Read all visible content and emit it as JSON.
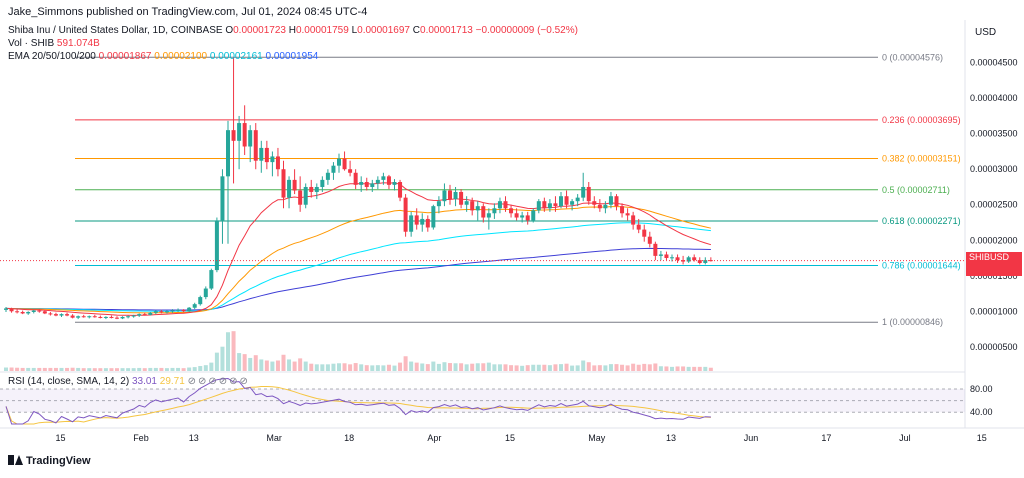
{
  "header": {
    "published": "Jake_Simmons published on TradingView.com, Jul 01, 2024 08:45 UTC-4",
    "symbol": "Shiba Inu / United States Dollar, 1D, COINBASE",
    "open_label": "O",
    "open": "0.00001723",
    "high_label": "H",
    "high": "0.00001759",
    "low_label": "L",
    "low": "0.00001697",
    "close_label": "C",
    "close": "0.00001713",
    "change": "−0.00000009 (−0.52%)",
    "vol_label": "Vol · SHIB",
    "vol": "591.074B",
    "ema_label": "EMA 20/50/100/200",
    "ema20": "0.00001867",
    "ema50": "0.00002100",
    "ema100": "0.00002161",
    "ema200": "0.00001954"
  },
  "currency": "USD",
  "price_tag": {
    "ticker": "SHIBUSD",
    "price": "0.00001713",
    "countdown": "11:14:31"
  },
  "rsi": {
    "label": "RSI (14, close, SMA, 14, 2)",
    "value": "33.01",
    "sma": "29.71",
    "levels": [
      "80.00",
      "40.00"
    ]
  },
  "logo_text": "TradingView",
  "colors": {
    "up": "#26a69a",
    "down": "#f23645",
    "ema20": "#f23645",
    "ema50": "#ff9800",
    "ema100": "#00e5ff",
    "ema200": "#3f3fd6",
    "rsi": "#7e57c2",
    "rsi_sma": "#f5c542"
  },
  "chart_data": {
    "type": "candlestick",
    "y_axis": {
      "ticks": [
        "0.00004500",
        "0.00004000",
        "0.00003500",
        "0.00003000",
        "0.00002500",
        "0.00002000",
        "0.00001500",
        "0.00001000",
        "0.00000500"
      ],
      "range": [
        5e-07,
        4.58e-05
      ]
    },
    "x_axis": {
      "ticks": [
        "15",
        "Feb",
        "13",
        "Mar",
        "18",
        "Apr",
        "15",
        "May",
        "13",
        "Jun",
        "17",
        "Jul",
        "15"
      ]
    },
    "fib_levels": [
      {
        "label": "0 (0.00004576)",
        "value": 4.576e-05,
        "color": "#787b86"
      },
      {
        "label": "0.236 (0.00003695)",
        "value": 3.695e-05,
        "color": "#f23645"
      },
      {
        "label": "0.382 (0.00003151)",
        "value": 3.151e-05,
        "color": "#ff9800"
      },
      {
        "label": "0.5 (0.00002711)",
        "value": 2.711e-05,
        "color": "#4caf50"
      },
      {
        "label": "0.618 (0.00002271)",
        "value": 2.271e-05,
        "color": "#089981"
      },
      {
        "label": "0.786 (0.00001644)",
        "value": 1.644e-05,
        "color": "#00bcd4"
      },
      {
        "label": "1 (0.00000846)",
        "value": 8.46e-06,
        "color": "#787b86"
      }
    ],
    "candles": [
      [
        1.02e-05,
        1.06e-05,
        9.9e-06,
        1.04e-05
      ],
      [
        1.04e-05,
        1.05e-05,
        9.8e-06,
        1e-05
      ],
      [
        1e-05,
        1.03e-05,
        9.7e-06,
        9.9e-06
      ],
      [
        9.9e-06,
        1.01e-05,
        9.6e-06,
        9.7e-06
      ],
      [
        9.7e-06,
        1e-05,
        9.5e-06,
        9.9e-06
      ],
      [
        9.9e-06,
        1.02e-05,
        9.7e-06,
        1.01e-05
      ],
      [
        1.01e-05,
        1.03e-05,
        9.8e-06,
        1e-05
      ],
      [
        1e-05,
        1.01e-05,
        9.6e-06,
        9.7e-06
      ],
      [
        9.7e-06,
        9.9e-06,
        9.4e-06,
        9.6e-06
      ],
      [
        9.6e-06,
        9.8e-06,
        9.3e-06,
        9.4e-06
      ],
      [
        9.4e-06,
        9.7e-06,
        9.2e-06,
        9.6e-06
      ],
      [
        9.6e-06,
        9.8e-06,
        9.3e-06,
        9.4e-06
      ],
      [
        9.4e-06,
        9.6e-06,
        9e-06,
        9.1e-06
      ],
      [
        9.1e-06,
        9.4e-06,
        8.9e-06,
        9.3e-06
      ],
      [
        9.3e-06,
        9.5e-06,
        9.1e-06,
        9.2e-06
      ],
      [
        9.2e-06,
        9.4e-06,
        9e-06,
        9.3e-06
      ],
      [
        9.3e-06,
        9.5e-06,
        9.1e-06,
        9.2e-06
      ],
      [
        9.2e-06,
        9.4e-06,
        9e-06,
        9.1e-06
      ],
      [
        9.1e-06,
        9.3e-06,
        8.9e-06,
        9.2e-06
      ],
      [
        9.2e-06,
        9.4e-06,
        9e-06,
        9.1e-06
      ],
      [
        9.1e-06,
        9.3e-06,
        8.9e-06,
        9e-06
      ],
      [
        9e-06,
        9.3e-06,
        8.9e-06,
        9.2e-06
      ],
      [
        9.2e-06,
        9.4e-06,
        9e-06,
        9.3e-06
      ],
      [
        9.3e-06,
        9.5e-06,
        9.1e-06,
        9.4e-06
      ],
      [
        9.4e-06,
        9.7e-06,
        9.2e-06,
        9.6e-06
      ],
      [
        9.6e-06,
        9.8e-06,
        9.4e-06,
        9.5e-06
      ],
      [
        9.5e-06,
        9.9e-06,
        9.4e-06,
        9.8e-06
      ],
      [
        9.8e-06,
        1.01e-05,
        9.6e-06,
        1e-05
      ],
      [
        1e-05,
        1.02e-05,
        9.7e-06,
        9.9e-06
      ],
      [
        9.9e-06,
        1.01e-05,
        9.7e-06,
        1e-05
      ],
      [
        1e-05,
        1.03e-05,
        9.8e-06,
        1.01e-05
      ],
      [
        1.01e-05,
        1.04e-05,
        9.9e-06,
        1.02e-05
      ],
      [
        1.02e-05,
        1.03e-05,
        9.9e-06,
        1e-05
      ],
      [
        1e-05,
        1.06e-05,
        9.9e-06,
        1.05e-05
      ],
      [
        1.05e-05,
        1.12e-05,
        1.03e-05,
        1.1e-05
      ],
      [
        1.1e-05,
        1.22e-05,
        1.08e-05,
        1.2e-05
      ],
      [
        1.2e-05,
        1.35e-05,
        1.17e-05,
        1.32e-05
      ],
      [
        1.32e-05,
        1.6e-05,
        1.3e-05,
        1.58e-05
      ],
      [
        1.58e-05,
        2.32e-05,
        1.55e-05,
        2.28e-05
      ],
      [
        2.28e-05,
        3e-05,
        1.95e-05,
        2.9e-05
      ],
      [
        2.9e-05,
        3.68e-05,
        1.95e-05,
        3.55e-05
      ],
      [
        3.55e-05,
        4.58e-05,
        2.8e-05,
        3.4e-05
      ],
      [
        3.4e-05,
        3.75e-05,
        3e-05,
        3.65e-05
      ],
      [
        3.65e-05,
        3.9e-05,
        3.2e-05,
        3.32e-05
      ],
      [
        3.32e-05,
        3.62e-05,
        3.1e-05,
        3.55e-05
      ],
      [
        3.55e-05,
        3.65e-05,
        3e-05,
        3.12e-05
      ],
      [
        3.12e-05,
        3.4e-05,
        2.95e-05,
        3.3e-05
      ],
      [
        3.3e-05,
        3.4e-05,
        3e-05,
        3.1e-05
      ],
      [
        3.1e-05,
        3.25e-05,
        2.9e-05,
        3.18e-05
      ],
      [
        3.18e-05,
        3.3e-05,
        2.9e-05,
        3e-05
      ],
      [
        3e-05,
        3.12e-05,
        2.45e-05,
        2.6e-05
      ],
      [
        2.6e-05,
        2.9e-05,
        2.45e-05,
        2.85e-05
      ],
      [
        2.85e-05,
        3e-05,
        2.65e-05,
        2.7e-05
      ],
      [
        2.7e-05,
        2.9e-05,
        2.4e-05,
        2.5e-05
      ],
      [
        2.5e-05,
        2.8e-05,
        2.45e-05,
        2.75e-05
      ],
      [
        2.75e-05,
        2.85e-05,
        2.6e-05,
        2.68e-05
      ],
      [
        2.68e-05,
        2.8e-05,
        2.58e-05,
        2.75e-05
      ],
      [
        2.75e-05,
        2.9e-05,
        2.68e-05,
        2.85e-05
      ],
      [
        2.85e-05,
        3e-05,
        2.78e-05,
        2.95e-05
      ],
      [
        2.95e-05,
        3.1e-05,
        2.85e-05,
        3.05e-05
      ],
      [
        3.05e-05,
        3.22e-05,
        2.95e-05,
        3.15e-05
      ],
      [
        3.15e-05,
        3.25e-05,
        2.98e-05,
        3e-05
      ],
      [
        3e-05,
        3.12e-05,
        2.9e-05,
        2.95e-05
      ],
      [
        2.95e-05,
        3e-05,
        2.72e-05,
        2.78e-05
      ],
      [
        2.78e-05,
        2.9e-05,
        2.68e-05,
        2.82e-05
      ],
      [
        2.82e-05,
        2.88e-05,
        2.7e-05,
        2.75e-05
      ],
      [
        2.75e-05,
        2.85e-05,
        2.68e-05,
        2.8e-05
      ],
      [
        2.8e-05,
        2.9e-05,
        2.72e-05,
        2.85e-05
      ],
      [
        2.85e-05,
        2.95e-05,
        2.78e-05,
        2.9e-05
      ],
      [
        2.9e-05,
        2.92e-05,
        2.72e-05,
        2.78e-05
      ],
      [
        2.78e-05,
        2.86e-05,
        2.7e-05,
        2.82e-05
      ],
      [
        2.82e-05,
        2.85e-05,
        2.55e-05,
        2.6e-05
      ],
      [
        2.6e-05,
        2.65e-05,
        2.05e-05,
        2.12e-05
      ],
      [
        2.12e-05,
        2.4e-05,
        2.05e-05,
        2.35e-05
      ],
      [
        2.35e-05,
        2.45e-05,
        2.15e-05,
        2.22e-05
      ],
      [
        2.22e-05,
        2.38e-05,
        2.12e-05,
        2.3e-05
      ],
      [
        2.3e-05,
        2.35e-05,
        2.12e-05,
        2.18e-05
      ],
      [
        2.18e-05,
        2.5e-05,
        2.15e-05,
        2.48e-05
      ],
      [
        2.48e-05,
        2.62e-05,
        2.38e-05,
        2.55e-05
      ],
      [
        2.55e-05,
        2.8e-05,
        2.48e-05,
        2.7e-05
      ],
      [
        2.7e-05,
        2.78e-05,
        2.5e-05,
        2.58e-05
      ],
      [
        2.58e-05,
        2.75e-05,
        2.48e-05,
        2.68e-05
      ],
      [
        2.68e-05,
        2.72e-05,
        2.45e-05,
        2.5e-05
      ],
      [
        2.5e-05,
        2.62e-05,
        2.4e-05,
        2.55e-05
      ],
      [
        2.55e-05,
        2.6e-05,
        2.35e-05,
        2.42e-05
      ],
      [
        2.42e-05,
        2.55e-05,
        2.28e-05,
        2.48e-05
      ],
      [
        2.48e-05,
        2.52e-05,
        2.25e-05,
        2.32e-05
      ],
      [
        2.32e-05,
        2.45e-05,
        2.15e-05,
        2.38e-05
      ],
      [
        2.38e-05,
        2.52e-05,
        2.3e-05,
        2.45e-05
      ],
      [
        2.45e-05,
        2.6e-05,
        2.38e-05,
        2.55e-05
      ],
      [
        2.55e-05,
        2.62e-05,
        2.4e-05,
        2.45e-05
      ],
      [
        2.45e-05,
        2.5e-05,
        2.32e-05,
        2.38e-05
      ],
      [
        2.38e-05,
        2.45e-05,
        2.28e-05,
        2.32e-05
      ],
      [
        2.32e-05,
        2.4e-05,
        2.25e-05,
        2.35e-05
      ],
      [
        2.35e-05,
        2.4e-05,
        2.22e-05,
        2.28e-05
      ],
      [
        2.28e-05,
        2.45e-05,
        2.25e-05,
        2.42e-05
      ],
      [
        2.42e-05,
        2.58e-05,
        2.38e-05,
        2.55e-05
      ],
      [
        2.55e-05,
        2.6e-05,
        2.4e-05,
        2.45e-05
      ],
      [
        2.45e-05,
        2.58e-05,
        2.4e-05,
        2.52e-05
      ],
      [
        2.52e-05,
        2.62e-05,
        2.4e-05,
        2.48e-05
      ],
      [
        2.48e-05,
        2.68e-05,
        2.45e-05,
        2.62e-05
      ],
      [
        2.62e-05,
        2.7e-05,
        2.45e-05,
        2.5e-05
      ],
      [
        2.5e-05,
        2.58e-05,
        2.42e-05,
        2.55e-05
      ],
      [
        2.55e-05,
        2.65e-05,
        2.48e-05,
        2.6e-05
      ],
      [
        2.6e-05,
        2.95e-05,
        2.55e-05,
        2.75e-05
      ],
      [
        2.75e-05,
        2.82e-05,
        2.5e-05,
        2.55e-05
      ],
      [
        2.55e-05,
        2.62e-05,
        2.45e-05,
        2.5e-05
      ],
      [
        2.5e-05,
        2.58e-05,
        2.4e-05,
        2.45e-05
      ],
      [
        2.45e-05,
        2.55e-05,
        2.38e-05,
        2.5e-05
      ],
      [
        2.5e-05,
        2.68e-05,
        2.45e-05,
        2.62e-05
      ],
      [
        2.62e-05,
        2.65e-05,
        2.42e-05,
        2.48e-05
      ],
      [
        2.48e-05,
        2.52e-05,
        2.32e-05,
        2.38e-05
      ],
      [
        2.38e-05,
        2.45e-05,
        2.28e-05,
        2.35e-05
      ],
      [
        2.35e-05,
        2.4e-05,
        2.15e-05,
        2.22e-05
      ],
      [
        2.22e-05,
        2.3e-05,
        2.1e-05,
        2.15e-05
      ],
      [
        2.15e-05,
        2.22e-05,
        1.98e-05,
        2.05e-05
      ],
      [
        2.05e-05,
        2.12e-05,
        1.9e-05,
        1.95e-05
      ],
      [
        1.95e-05,
        1.98e-05,
        1.72e-05,
        1.78e-05
      ],
      [
        1.78e-05,
        1.85e-05,
        1.72e-05,
        1.8e-05
      ],
      [
        1.8e-05,
        1.84e-05,
        1.72e-05,
        1.75e-05
      ],
      [
        1.75e-05,
        1.8e-05,
        1.7e-05,
        1.76e-05
      ],
      [
        1.76e-05,
        1.8e-05,
        1.68e-05,
        1.72e-05
      ],
      [
        1.72e-05,
        1.78e-05,
        1.66e-05,
        1.7e-05
      ],
      [
        1.7e-05,
        1.78e-05,
        1.68e-05,
        1.76e-05
      ],
      [
        1.76e-05,
        1.8e-05,
        1.7e-05,
        1.72e-05
      ],
      [
        1.72e-05,
        1.76e-05,
        1.66e-05,
        1.68e-05
      ],
      [
        1.68e-05,
        1.76e-05,
        1.66e-05,
        1.72e-05
      ],
      [
        1.72e-05,
        1.76e-05,
        1.7e-05,
        1.71e-05
      ]
    ]
  }
}
